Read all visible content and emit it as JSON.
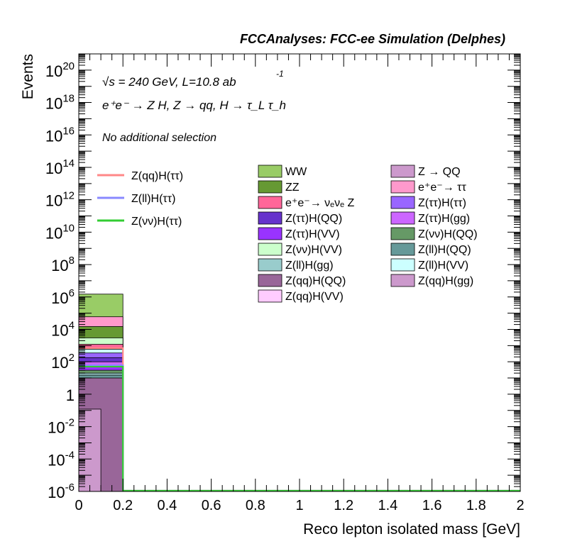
{
  "header": {
    "title": "FCCAnalyses: FCC-ee Simulation (Delphes)"
  },
  "annotations": {
    "energy_line": "√s = 240 GeV, L=10.8 ab",
    "energy_sup": "-1",
    "process_line": "e⁺e⁻ → Z H, Z → qq, H → τ_L τ_h",
    "selection_line": "No additional selection"
  },
  "chart_data": {
    "type": "bar",
    "subtype": "stacked-histogram-log",
    "xlabel": "Reco lepton isolated mass [GeV]",
    "ylabel": "Events",
    "xlim": [
      0,
      2
    ],
    "ylim": [
      1e-06,
      1e+21
    ],
    "yscale": "log",
    "grid": false,
    "legend_placement": "top-center",
    "x_ticks": [
      "0",
      "0.2",
      "0.4",
      "0.6",
      "0.8",
      "1",
      "1.2",
      "1.4",
      "1.6",
      "1.8",
      "2"
    ],
    "y_ticks": [
      {
        "base": "10",
        "exp": "-6",
        "value": 1e-06
      },
      {
        "base": "10",
        "exp": "-4",
        "value": 0.0001
      },
      {
        "base": "10",
        "exp": "-2",
        "value": 0.01
      },
      {
        "base": "1",
        "exp": "",
        "value": 1
      },
      {
        "base": "10",
        "exp": "2",
        "value": 100.0
      },
      {
        "base": "10",
        "exp": "4",
        "value": 10000.0
      },
      {
        "base": "10",
        "exp": "6",
        "value": 1000000.0
      },
      {
        "base": "10",
        "exp": "8",
        "value": 100000000.0
      },
      {
        "base": "10",
        "exp": "10",
        "value": 10000000000.0
      },
      {
        "base": "10",
        "exp": "12",
        "value": 1000000000000.0
      },
      {
        "base": "10",
        "exp": "14",
        "value": 100000000000000.0
      },
      {
        "base": "10",
        "exp": "16",
        "value": 1e+16
      },
      {
        "base": "10",
        "exp": "18",
        "value": 1e+18
      },
      {
        "base": "10",
        "exp": "20",
        "value": 1e+20
      }
    ],
    "stack_boundaries": [
      {
        "x0": 0.0,
        "x1": 0.2,
        "top": 1500000.0,
        "color": "#99cc66"
      },
      {
        "x0": 0.0,
        "x1": 0.2,
        "top": 60000.0,
        "color": "#ff99cc"
      },
      {
        "x0": 0.0,
        "x1": 0.2,
        "top": 15000.0,
        "color": "#669933"
      },
      {
        "x0": 0.0,
        "x1": 0.2,
        "top": 3000,
        "color": "#ccffcc"
      },
      {
        "x0": 0.0,
        "x1": 0.2,
        "top": 1200,
        "color": "#ff6699"
      },
      {
        "x0": 0.0,
        "x1": 0.2,
        "top": 600,
        "color": "#ccffff"
      },
      {
        "x0": 0.0,
        "x1": 0.2,
        "top": 350,
        "color": "#9966ff"
      },
      {
        "x0": 0.0,
        "x1": 0.2,
        "top": 180,
        "color": "#6633cc"
      },
      {
        "x0": 0.0,
        "x1": 0.2,
        "top": 100,
        "color": "#cc66ff"
      },
      {
        "x0": 0.0,
        "x1": 0.2,
        "top": 60,
        "color": "#9933ff"
      },
      {
        "x0": 0.0,
        "x1": 0.2,
        "top": 30,
        "color": "#669966"
      },
      {
        "x0": 0.0,
        "x1": 0.2,
        "top": 20,
        "color": "#99cccc"
      },
      {
        "x0": 0.0,
        "x1": 0.2,
        "top": 15,
        "color": "#669999"
      },
      {
        "x0": 0.0,
        "x1": 0.2,
        "top": 10,
        "color": "#996699"
      },
      {
        "x0": 0.0,
        "x1": 0.1,
        "top": 0.12,
        "color": "#cc99cc"
      }
    ],
    "line_series": [
      {
        "name": "Z(qq)H(ττ)",
        "color": "#ff8888",
        "x": [
          0,
          0.2
        ],
        "values": [
          700
        ]
      },
      {
        "name": "Z(ll)H(ττ)",
        "color": "#8888ff",
        "x": [
          0,
          0.2
        ],
        "values": [
          60
        ]
      },
      {
        "name": "Z(νν)H(ττ)",
        "color": "#33cc33",
        "x": [
          0,
          0.2
        ],
        "values": [
          50
        ]
      }
    ],
    "legend_lines": [
      {
        "label": "Z(qq)H(ττ)",
        "color": "#ff8888"
      },
      {
        "label": "Z(ll)H(ττ)",
        "color": "#8888ff"
      },
      {
        "label": "Z(νν)H(ττ)",
        "color": "#33cc33"
      }
    ],
    "legend_fills": [
      {
        "label": "WW",
        "color": "#99cc66"
      },
      {
        "label": "Z → QQ",
        "color": "#cc99cc"
      },
      {
        "label": "ZZ",
        "color": "#669933"
      },
      {
        "label": "e⁺e⁻→ ττ",
        "color": "#ff99cc"
      },
      {
        "label": "e⁺e⁻→ νₑνₑ Z",
        "color": "#ff6699"
      },
      {
        "label": "Z(ττ)H(ττ)",
        "color": "#9966ff"
      },
      {
        "label": "Z(ττ)H(QQ)",
        "color": "#6633cc"
      },
      {
        "label": "Z(ττ)H(gg)",
        "color": "#cc66ff"
      },
      {
        "label": "Z(ττ)H(VV)",
        "color": "#9933ff"
      },
      {
        "label": "Z(νν)H(QQ)",
        "color": "#669966"
      },
      {
        "label": "Z(νν)H(VV)",
        "color": "#ccffcc"
      },
      {
        "label": "Z(ll)H(QQ)",
        "color": "#669999"
      },
      {
        "label": "Z(ll)H(gg)",
        "color": "#99cccc"
      },
      {
        "label": "Z(ll)H(VV)",
        "color": "#ccffff"
      },
      {
        "label": "Z(qq)H(QQ)",
        "color": "#996699"
      },
      {
        "label": "Z(qq)H(gg)",
        "color": "#cc99cc"
      },
      {
        "label": "Z(qq)H(VV)",
        "color": "#ffccff"
      }
    ]
  }
}
